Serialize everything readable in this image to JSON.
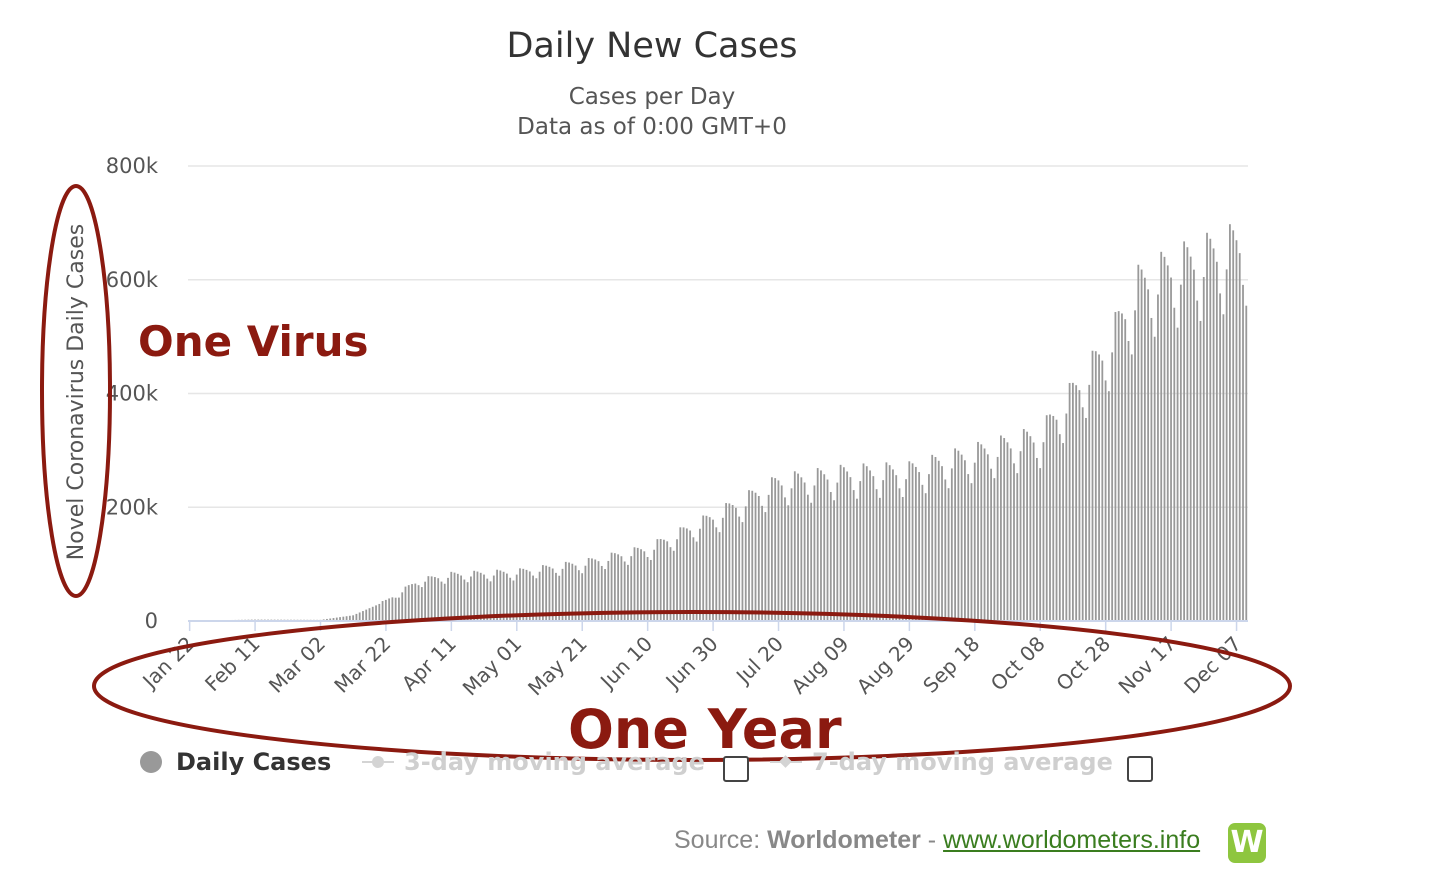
{
  "chart_data": {
    "type": "bar",
    "title": "Daily New Cases",
    "subtitle": [
      "Cases per Day",
      "Data as of 0:00 GMT+0"
    ],
    "xlabel": "",
    "ylabel": "Novel Coronavirus Daily Cases",
    "ylim": [
      0,
      800000
    ],
    "y_ticks": [
      0,
      200000,
      400000,
      600000,
      800000
    ],
    "y_tick_labels": [
      "0",
      "200k",
      "400k",
      "600k",
      "800k"
    ],
    "x_tick_labels": [
      "Jan 22",
      "Feb 11",
      "Mar 02",
      "Mar 22",
      "Apr 11",
      "May 01",
      "May 21",
      "Jun 10",
      "Jun 30",
      "Jul 20",
      "Aug 09",
      "Aug 29",
      "Sep 18",
      "Oct 08",
      "Oct 28",
      "Nov 17",
      "Dec 07"
    ],
    "grid": true,
    "legend_position": "bottom",
    "series": [
      {
        "name": "Daily Cases",
        "color": "#999999",
        "x_start": "Jan 22",
        "x_end": "Dec 10",
        "anchors": [
          {
            "x": "Jan 22",
            "y": 500
          },
          {
            "x": "Feb 11",
            "y": 2500
          },
          {
            "x": "Mar 02",
            "y": 2000
          },
          {
            "x": "Mar 12",
            "y": 10000
          },
          {
            "x": "Mar 22",
            "y": 35000
          },
          {
            "x": "Apr 01",
            "y": 70000
          },
          {
            "x": "Apr 11",
            "y": 80000
          },
          {
            "x": "May 01",
            "y": 85000
          },
          {
            "x": "May 21",
            "y": 100000
          },
          {
            "x": "Jun 10",
            "y": 125000
          },
          {
            "x": "Jun 30",
            "y": 180000
          },
          {
            "x": "Jul 20",
            "y": 240000
          },
          {
            "x": "Aug 09",
            "y": 255000
          },
          {
            "x": "Aug 29",
            "y": 260000
          },
          {
            "x": "Sep 18",
            "y": 290000
          },
          {
            "x": "Oct 08",
            "y": 320000
          },
          {
            "x": "Oct 28",
            "y": 470000
          },
          {
            "x": "Nov 07",
            "y": 580000
          },
          {
            "x": "Nov 17",
            "y": 610000
          },
          {
            "x": "Dec 07",
            "y": 650000
          },
          {
            "x": "Dec 10",
            "y": 660000
          }
        ]
      }
    ],
    "legend": [
      {
        "name": "Daily Cases",
        "enabled": true
      },
      {
        "name": "3-day moving average",
        "enabled": false
      },
      {
        "name": "7-day moving average",
        "enabled": false
      }
    ]
  },
  "annotations": {
    "virus": "One Virus",
    "year": "One Year",
    "color": "#8b1a10"
  },
  "source": {
    "prefix": "Source: ",
    "brand": "Worldometer",
    "separator": " - ",
    "link_text": "www.worldometers.info",
    "logo_letter": "W",
    "logo_color": "#8ec63f",
    "link_color": "#3a7d1f"
  }
}
